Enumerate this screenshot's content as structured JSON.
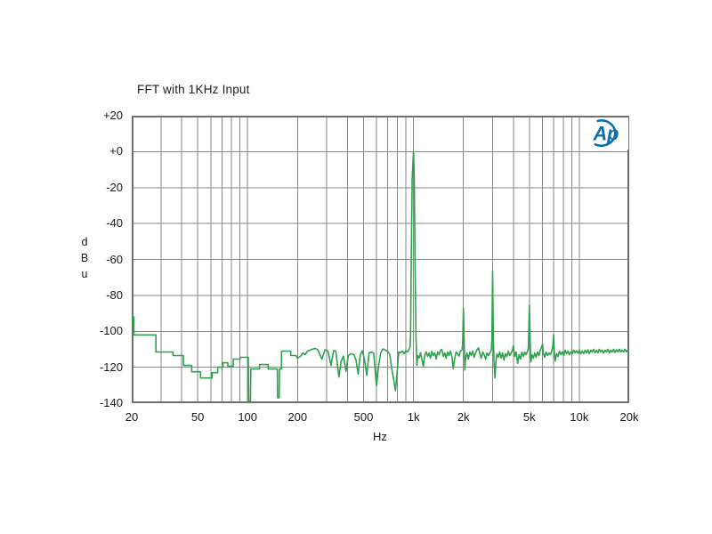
{
  "chart_data": {
    "type": "line",
    "title": "FFT with 1KHz Input",
    "xlabel": "Hz",
    "ylabel": "dBu",
    "ylabel_stacked": [
      "d",
      "B",
      "u"
    ],
    "x_scale": "log",
    "x_range": [
      20,
      20000
    ],
    "y_range": [
      -140,
      20
    ],
    "grid": true,
    "x_ticks": [
      {
        "v": 20,
        "label": "20"
      },
      {
        "v": 50,
        "label": "50"
      },
      {
        "v": 100,
        "label": "100"
      },
      {
        "v": 200,
        "label": "200"
      },
      {
        "v": 500,
        "label": "500"
      },
      {
        "v": 1000,
        "label": "1k"
      },
      {
        "v": 2000,
        "label": "2k"
      },
      {
        "v": 5000,
        "label": "5k"
      },
      {
        "v": 10000,
        "label": "10k"
      },
      {
        "v": 20000,
        "label": "20k"
      }
    ],
    "x_gridlines": [
      30,
      40,
      50,
      60,
      70,
      80,
      90,
      100,
      200,
      300,
      400,
      500,
      600,
      700,
      800,
      900,
      1000,
      2000,
      3000,
      4000,
      5000,
      6000,
      7000,
      8000,
      9000,
      10000
    ],
    "y_ticks": [
      {
        "v": 20,
        "label": "+20"
      },
      {
        "v": 0,
        "label": "+0"
      },
      {
        "v": -20,
        "label": "-20"
      },
      {
        "v": -40,
        "label": "-40"
      },
      {
        "v": -60,
        "label": "-60"
      },
      {
        "v": -80,
        "label": "-80"
      },
      {
        "v": -100,
        "label": "-100"
      },
      {
        "v": -120,
        "label": "-120"
      },
      {
        "v": -140,
        "label": "-140"
      }
    ],
    "key_features": {
      "fundamental": {
        "freq_hz": 1000,
        "level_dbu": 0
      },
      "harmonics": [
        {
          "freq_hz": 2000,
          "level_dbu": -87
        },
        {
          "freq_hz": 3000,
          "level_dbu": -66.5
        },
        {
          "freq_hz": 5000,
          "level_dbu": -85.5
        },
        {
          "freq_hz": 7000,
          "level_dbu": -102
        }
      ],
      "noise_floor_dbu": -112,
      "notches": [
        {
          "freq_hz": 103,
          "level_dbu": -139
        },
        {
          "freq_hz": 153,
          "level_dbu": -137
        },
        {
          "freq_hz": 600,
          "level_dbu": -130.5
        },
        {
          "freq_hz": 778,
          "level_dbu": -133
        }
      ]
    },
    "series": [
      {
        "name": "FFT spectrum",
        "color": "#2da14c",
        "points": [
          [
            20,
            -96
          ],
          [
            20,
            -92
          ],
          [
            20.6,
            -92
          ],
          [
            20.6,
            -102
          ],
          [
            28,
            -102
          ],
          [
            28,
            -111.5
          ],
          [
            35.5,
            -111.5
          ],
          [
            35.5,
            -113.5
          ],
          [
            41,
            -113.5
          ],
          [
            41,
            -119
          ],
          [
            46,
            -119
          ],
          [
            46,
            -122.5
          ],
          [
            52,
            -122.5
          ],
          [
            52,
            -126
          ],
          [
            61,
            -126
          ],
          [
            61,
            -123
          ],
          [
            66,
            -123
          ],
          [
            66,
            -120
          ],
          [
            71,
            -120
          ],
          [
            71,
            -117.5
          ],
          [
            76,
            -117.5
          ],
          [
            76,
            -119.5
          ],
          [
            82,
            -119.5
          ],
          [
            82,
            -115.5
          ],
          [
            90,
            -115.5
          ],
          [
            90,
            -114.5
          ],
          [
            101,
            -114.5
          ],
          [
            101.5,
            -139
          ],
          [
            104,
            -139
          ],
          [
            104.5,
            -121
          ],
          [
            118,
            -121
          ],
          [
            118,
            -118.5
          ],
          [
            133,
            -118.5
          ],
          [
            133,
            -121
          ],
          [
            151,
            -121
          ],
          [
            151.5,
            -137
          ],
          [
            155,
            -137
          ],
          [
            155.5,
            -121
          ],
          [
            160,
            -121
          ],
          [
            160,
            -111
          ],
          [
            182,
            -111
          ],
          [
            182,
            -113.5
          ],
          [
            196,
            -113.5
          ],
          [
            200,
            -115
          ],
          [
            208,
            -114
          ],
          [
            215,
            -112
          ],
          [
            222,
            -113
          ],
          [
            230,
            -111
          ],
          [
            238,
            -110.5
          ],
          [
            246,
            -110
          ],
          [
            256,
            -109.5
          ],
          [
            266,
            -110.5
          ],
          [
            280,
            -115.5
          ],
          [
            293,
            -110.3
          ],
          [
            305,
            -111
          ],
          [
            318,
            -119
          ],
          [
            330,
            -110.8
          ],
          [
            340,
            -111
          ],
          [
            355,
            -125.5
          ],
          [
            366,
            -117
          ],
          [
            378,
            -113.8
          ],
          [
            392,
            -122.3
          ],
          [
            405,
            -113.5
          ],
          [
            420,
            -112.5
          ],
          [
            437,
            -113
          ],
          [
            450,
            -116
          ],
          [
            464,
            -123.8
          ],
          [
            478,
            -113
          ],
          [
            492,
            -110.8
          ],
          [
            507,
            -116
          ],
          [
            523,
            -124.5
          ],
          [
            540,
            -112
          ],
          [
            558,
            -111.5
          ],
          [
            576,
            -112.2
          ],
          [
            598,
            -130.5
          ],
          [
            615,
            -120
          ],
          [
            635,
            -112
          ],
          [
            655,
            -109.8
          ],
          [
            675,
            -110.5
          ],
          [
            698,
            -111
          ],
          [
            720,
            -113
          ],
          [
            740,
            -121
          ],
          [
            760,
            -127
          ],
          [
            778,
            -133
          ],
          [
            795,
            -124
          ],
          [
            815,
            -111.5
          ],
          [
            835,
            -112
          ],
          [
            856,
            -111
          ],
          [
            877,
            -112.5
          ],
          [
            898,
            -110.8
          ],
          [
            920,
            -111.5
          ],
          [
            940,
            -110.2
          ],
          [
            952,
            -109
          ],
          [
            960,
            -103
          ],
          [
            970,
            -60
          ],
          [
            982,
            -15
          ],
          [
            1000,
            0
          ],
          [
            1010,
            -12
          ],
          [
            1022,
            -58
          ],
          [
            1035,
            -103
          ],
          [
            1048,
            -119
          ],
          [
            1062,
            -113.5
          ],
          [
            1082,
            -114.8
          ],
          [
            1103,
            -112
          ],
          [
            1125,
            -115.8
          ],
          [
            1148,
            -119.5
          ],
          [
            1171,
            -113
          ],
          [
            1194,
            -111.5
          ],
          [
            1218,
            -114
          ],
          [
            1242,
            -112
          ],
          [
            1267,
            -115
          ],
          [
            1292,
            -111
          ],
          [
            1318,
            -113.5
          ],
          [
            1344,
            -112
          ],
          [
            1371,
            -115.5
          ],
          [
            1398,
            -111.5
          ],
          [
            1426,
            -113
          ],
          [
            1454,
            -110.5
          ],
          [
            1483,
            -110.2
          ],
          [
            1513,
            -114
          ],
          [
            1543,
            -112
          ],
          [
            1574,
            -115
          ],
          [
            1605,
            -111.5
          ],
          [
            1637,
            -113.5
          ],
          [
            1670,
            -111
          ],
          [
            1703,
            -114
          ],
          [
            1737,
            -120.8
          ],
          [
            1772,
            -115
          ],
          [
            1807,
            -111.5
          ],
          [
            1843,
            -112.5
          ],
          [
            1880,
            -113.8
          ],
          [
            1918,
            -111
          ],
          [
            1956,
            -110.5
          ],
          [
            1978,
            -108
          ],
          [
            2000,
            -87
          ],
          [
            2022,
            -107
          ],
          [
            2040,
            -121.5
          ],
          [
            2061,
            -115
          ],
          [
            2103,
            -112
          ],
          [
            2145,
            -115.5
          ],
          [
            2188,
            -111.5
          ],
          [
            2232,
            -113.5
          ],
          [
            2277,
            -111
          ],
          [
            2322,
            -114.5
          ],
          [
            2369,
            -112
          ],
          [
            2416,
            -110.3
          ],
          [
            2465,
            -109.3
          ],
          [
            2514,
            -112.5
          ],
          [
            2564,
            -115
          ],
          [
            2616,
            -111.5
          ],
          [
            2668,
            -113
          ],
          [
            2722,
            -115.5
          ],
          [
            2776,
            -112
          ],
          [
            2832,
            -113.5
          ],
          [
            2889,
            -112
          ],
          [
            2946,
            -110.5
          ],
          [
            2970,
            -105
          ],
          [
            3000,
            -66.5
          ],
          [
            3032,
            -103
          ],
          [
            3062,
            -118
          ],
          [
            3100,
            -126
          ],
          [
            3140,
            -117
          ],
          [
            3183,
            -112.5
          ],
          [
            3246,
            -114.5
          ],
          [
            3311,
            -111.5
          ],
          [
            3377,
            -115
          ],
          [
            3444,
            -112
          ],
          [
            3513,
            -116
          ],
          [
            3583,
            -112.5
          ],
          [
            3655,
            -114
          ],
          [
            3728,
            -111
          ],
          [
            3802,
            -113.5
          ],
          [
            3878,
            -112
          ],
          [
            3956,
            -110.5
          ],
          [
            4000,
            -108
          ],
          [
            4080,
            -114
          ],
          [
            4162,
            -111.5
          ],
          [
            4245,
            -117.8
          ],
          [
            4330,
            -113
          ],
          [
            4417,
            -115.5
          ],
          [
            4505,
            -111.5
          ],
          [
            4595,
            -114
          ],
          [
            4687,
            -111.5
          ],
          [
            4781,
            -113
          ],
          [
            4876,
            -111
          ],
          [
            4940,
            -109
          ],
          [
            5000,
            -85.5
          ],
          [
            5062,
            -108
          ],
          [
            5105,
            -117
          ],
          [
            5175,
            -113
          ],
          [
            5279,
            -115
          ],
          [
            5385,
            -112
          ],
          [
            5493,
            -114.5
          ],
          [
            5603,
            -111.5
          ],
          [
            5715,
            -113.5
          ],
          [
            5829,
            -110.3
          ],
          [
            5946,
            -108.5
          ],
          [
            6000,
            -107
          ],
          [
            6065,
            -112
          ],
          [
            6186,
            -114.5
          ],
          [
            6310,
            -111.5
          ],
          [
            6436,
            -113.5
          ],
          [
            6565,
            -112
          ],
          [
            6696,
            -113
          ],
          [
            6830,
            -110.8
          ],
          [
            6930,
            -108
          ],
          [
            7000,
            -102
          ],
          [
            7075,
            -112
          ],
          [
            7150,
            -116.5
          ],
          [
            7293,
            -112.5
          ],
          [
            7439,
            -114
          ],
          [
            7588,
            -111
          ],
          [
            7740,
            -113
          ],
          [
            7895,
            -111.5
          ],
          [
            8053,
            -113.5
          ],
          [
            8214,
            -110.5
          ],
          [
            8378,
            -112.5
          ],
          [
            8546,
            -111
          ],
          [
            8717,
            -113
          ],
          [
            8891,
            -111.5
          ],
          [
            9069,
            -112.5
          ],
          [
            9250,
            -110.5
          ],
          [
            9435,
            -112
          ],
          [
            9624,
            -110.8
          ],
          [
            9816,
            -112.2
          ],
          [
            10013,
            -110.5
          ],
          [
            10213,
            -112.5
          ],
          [
            10417,
            -111
          ],
          [
            10625,
            -112.5
          ],
          [
            10838,
            -110.5
          ],
          [
            11055,
            -112
          ],
          [
            11276,
            -110.3
          ],
          [
            11501,
            -112.5
          ],
          [
            11731,
            -110.5
          ],
          [
            11966,
            -111.5
          ],
          [
            12205,
            -110
          ],
          [
            12449,
            -112
          ],
          [
            12698,
            -110.5
          ],
          [
            12952,
            -112
          ],
          [
            13211,
            -110
          ],
          [
            13475,
            -111.5
          ],
          [
            13745,
            -110.5
          ],
          [
            14020,
            -112
          ],
          [
            14300,
            -110.5
          ],
          [
            14586,
            -111.5
          ],
          [
            14878,
            -110
          ],
          [
            15175,
            -112
          ],
          [
            15479,
            -110.5
          ],
          [
            15788,
            -111.5
          ],
          [
            16104,
            -110
          ],
          [
            16426,
            -111.8
          ],
          [
            16755,
            -110.3
          ],
          [
            17090,
            -111.5
          ],
          [
            17432,
            -110
          ],
          [
            17780,
            -111.5
          ],
          [
            18136,
            -110.5
          ],
          [
            18499,
            -111.5
          ],
          [
            18869,
            -110
          ],
          [
            19246,
            -111.3
          ],
          [
            19631,
            -110.5
          ],
          [
            20000,
            -111
          ]
        ]
      }
    ],
    "colors": {
      "trace": "#2da14c",
      "grid": "#868686",
      "frame": "#6e6e6e",
      "text": "#1a1a1a",
      "background": "#ffffff"
    }
  },
  "logo": {
    "text": "Ap",
    "color": "#0e6fa6"
  }
}
